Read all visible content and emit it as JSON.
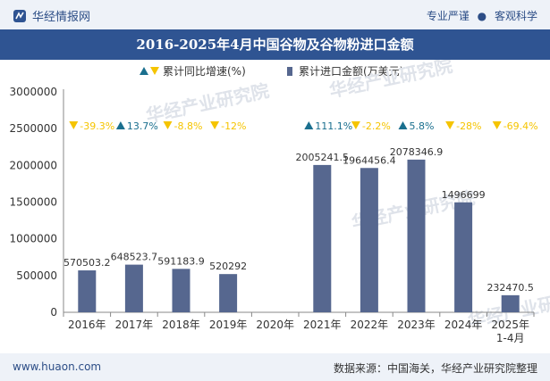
{
  "header": {
    "brand": "华经情报网",
    "tag_left": "专业严谨",
    "tag_right": "客观科学",
    "tag_separator": "●"
  },
  "title": "2016-2025年4月中国谷物及谷物粉进口金额",
  "footer": {
    "site": "www.huaon.com",
    "source": "数据来源：中国海关，华经产业研究院整理"
  },
  "watermark": "华经产业研究院",
  "colors": {
    "bar": "#56678f",
    "line": "#1a6f8e",
    "marker_up": "#1a6f8e",
    "marker_down": "#f5c400",
    "label_up": "#1a6f8e",
    "label_down": "#f5c400",
    "header_bg": "#2f5492"
  },
  "chart_data": {
    "type": "bar",
    "categories": [
      "2016年",
      "2017年",
      "2018年",
      "2019年",
      "2020年",
      "2021年",
      "2022年",
      "2023年",
      "2024年",
      "2025年\n1-4月"
    ],
    "series": [
      {
        "name": "累计进口金额(万美元)",
        "type": "bar",
        "values": [
          570503.2,
          648523.7,
          591183.9,
          520292,
          null,
          2005241.5,
          1964456.4,
          2078346.9,
          1496699,
          232470.5
        ],
        "labels": [
          "570503.2",
          "648523.7",
          "591183.9",
          "520292",
          "",
          "2005241.5",
          "1964456.4",
          "2078346.9",
          "1496699",
          "232470.5"
        ]
      },
      {
        "name": "累计同比增速(%)",
        "type": "marker",
        "values": [
          -39.3,
          13.7,
          -8.8,
          -12,
          null,
          111.1,
          -2.2,
          5.8,
          -28,
          -69.4
        ],
        "labels": [
          "-39.3%",
          "13.7%",
          "-8.8%",
          "-12%",
          "",
          "111.1%",
          "-2.2%",
          "5.8%",
          "-28%",
          "-69.4%"
        ]
      }
    ],
    "ylim": [
      0,
      3000000
    ],
    "yticks": [
      0,
      500000,
      1000000,
      1500000,
      2000000,
      2500000,
      3000000
    ],
    "ytick_labels": [
      "0",
      "500000",
      "1000000",
      "1500000",
      "2000000",
      "2500000",
      "3000000"
    ],
    "legend_position": "top-center",
    "grid": false
  }
}
